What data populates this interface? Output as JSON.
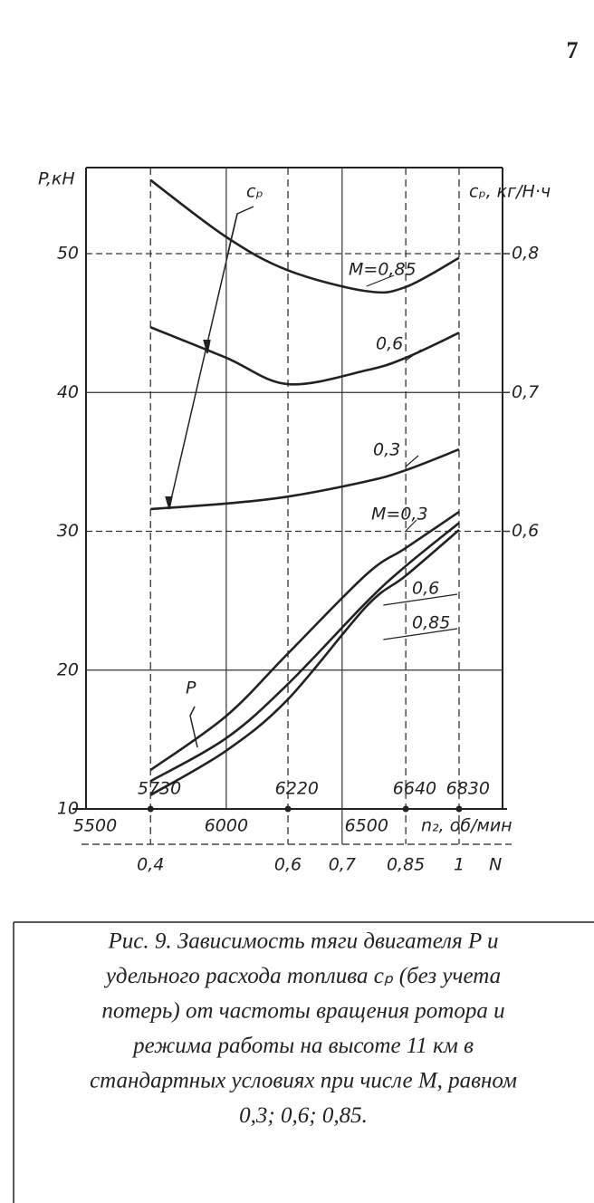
{
  "page_number": "7",
  "chart_data": {
    "type": "line",
    "ylabel": "P,кН",
    "y2label": "cₚ, кг/Н·ч",
    "xlabel": "n₂, об/мин",
    "x": [
      5730,
      6000,
      6220,
      6500,
      6640,
      6830
    ],
    "xlim": [
      5500,
      6985
    ],
    "xticks": [
      5500,
      6000,
      6500
    ],
    "ylim": [
      10,
      56.2
    ],
    "yticks": [
      10,
      20,
      30,
      40,
      50
    ],
    "y2lim": [
      0.4,
      0.862
    ],
    "y2ticks": [
      {
        "value": 0.6,
        "label": "0,6"
      },
      {
        "value": 0.7,
        "label": "0,7"
      },
      {
        "value": 0.8,
        "label": "0,8"
      }
    ],
    "marked_x": [
      5730,
      6220,
      6640,
      6830
    ],
    "secondary_x": {
      "label": "N",
      "ticks": [
        {
          "value": 5730,
          "label": "0,4"
        },
        {
          "value": 6220,
          "label": "0,6"
        },
        {
          "value": 6413,
          "label": "0,7"
        },
        {
          "value": 6640,
          "label": "0,85"
        },
        {
          "value": 6830,
          "label": "1"
        }
      ]
    },
    "annotations": [
      "cₚ",
      "P"
    ],
    "series": [
      {
        "name": "M=0,85",
        "color": "#222",
        "axis": "y2",
        "values": [
          0.853,
          0.812,
          0.788,
          0.773,
          0.776,
          0.797
        ]
      },
      {
        "name": "0,6",
        "color": "#222",
        "axis": "y2",
        "values": [
          0.747,
          0.725,
          0.706,
          0.716,
          0.725,
          0.743
        ]
      },
      {
        "name": "0,3",
        "color": "#222",
        "axis": "y2",
        "values": [
          0.616,
          0.62,
          0.625,
          0.636,
          0.644,
          0.659
        ]
      },
      {
        "name": "M=0,3",
        "color": "#222",
        "values": [
          12.8,
          16.7,
          21.2,
          26.9,
          28.8,
          31.4
        ]
      },
      {
        "name": "0,6",
        "color": "#222",
        "values": [
          12.0,
          15.1,
          19.0,
          24.9,
          27.5,
          30.6
        ]
      },
      {
        "name": "0,85",
        "color": "#222",
        "values": [
          11.0,
          14.2,
          17.9,
          24.6,
          26.8,
          30.1
        ]
      }
    ]
  },
  "caption": [
    "Рис. 9. Зависимость тяги двигателя P и",
    "удельного расхода топлива cₚ (без учета",
    "потерь) от частоты вращения ротора и",
    "режима работы на высоте 11 км в",
    "стандартных условиях при числе М, равном",
    "0,3; 0,6; 0,85."
  ]
}
